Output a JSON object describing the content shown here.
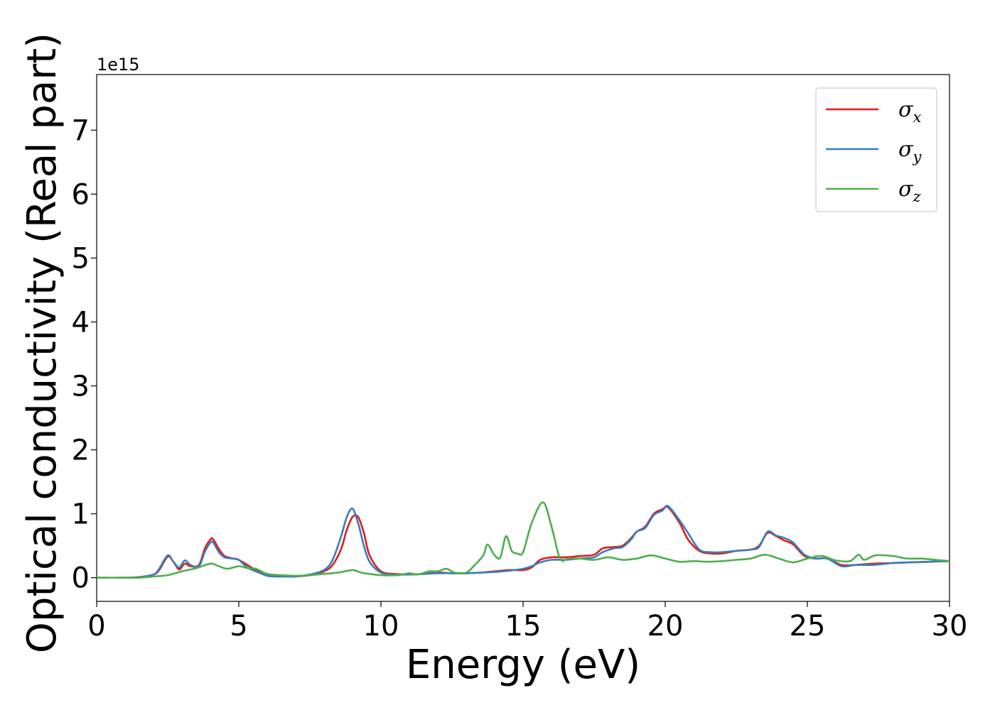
{
  "chart_data": {
    "type": "line",
    "title": "",
    "xlabel": "Energy (eV)",
    "ylabel": "Optical conductivity (Real part)",
    "y_offset_text": "1e15",
    "xlim": [
      0,
      30
    ],
    "ylim": [
      -0.37,
      7.87
    ],
    "xticks": [
      0,
      5,
      10,
      15,
      20,
      25,
      30
    ],
    "xtick_labels": [
      "0",
      "5",
      "10",
      "15",
      "20",
      "25",
      "30"
    ],
    "yticks": [
      0,
      1,
      2,
      3,
      4,
      5,
      6,
      7
    ],
    "ytick_labels": [
      "0",
      "1",
      "2",
      "3",
      "4",
      "5",
      "6",
      "7"
    ],
    "grid": false,
    "legend_position": "top-right",
    "series": [
      {
        "name": "σ",
        "subscript": "x",
        "color": "#e41a1c",
        "x": [
          0,
          1,
          1.5,
          2,
          2.2,
          2.5,
          2.7,
          2.9,
          3.1,
          3.3,
          3.6,
          3.8,
          4.0,
          4.1,
          4.3,
          4.5,
          4.8,
          5.0,
          5.3,
          5.6,
          6.0,
          6.3,
          6.6,
          7.0,
          7.5,
          8.0,
          8.3,
          8.6,
          8.8,
          9.0,
          9.2,
          9.4,
          9.6,
          10.0,
          10.5,
          11.0,
          11.5,
          12.0,
          12.5,
          13.0,
          13.5,
          14.0,
          14.5,
          15.0,
          15.3,
          15.6,
          16.0,
          16.5,
          17.0,
          17.5,
          17.8,
          18.2,
          18.5,
          18.8,
          19.0,
          19.3,
          19.6,
          19.9,
          20.1,
          20.5,
          20.8,
          21.2,
          21.6,
          22.0,
          22.5,
          23.0,
          23.3,
          23.6,
          23.9,
          24.2,
          24.5,
          24.9,
          25.3,
          25.7,
          26.2,
          26.7,
          27.3,
          28.0,
          28.6,
          29.3,
          30.0
        ],
        "y": [
          0,
          0,
          0.01,
          0.05,
          0.12,
          0.33,
          0.25,
          0.13,
          0.22,
          0.18,
          0.2,
          0.45,
          0.6,
          0.6,
          0.45,
          0.34,
          0.3,
          0.28,
          0.2,
          0.12,
          0.04,
          0.02,
          0.02,
          0.02,
          0.04,
          0.1,
          0.2,
          0.45,
          0.75,
          0.95,
          0.95,
          0.7,
          0.35,
          0.1,
          0.06,
          0.05,
          0.06,
          0.08,
          0.07,
          0.07,
          0.08,
          0.1,
          0.12,
          0.12,
          0.16,
          0.28,
          0.32,
          0.32,
          0.34,
          0.36,
          0.46,
          0.48,
          0.5,
          0.62,
          0.72,
          0.8,
          1.0,
          1.07,
          1.1,
          0.86,
          0.6,
          0.42,
          0.38,
          0.38,
          0.42,
          0.44,
          0.5,
          0.7,
          0.65,
          0.58,
          0.52,
          0.34,
          0.3,
          0.3,
          0.2,
          0.2,
          0.22,
          0.23,
          0.24,
          0.25,
          0.26
        ]
      },
      {
        "name": "σ",
        "subscript": "y",
        "color": "#377eb8",
        "x": [
          0,
          1,
          1.5,
          2,
          2.2,
          2.5,
          2.7,
          2.9,
          3.1,
          3.3,
          3.6,
          3.8,
          4.0,
          4.1,
          4.3,
          4.5,
          4.8,
          5.0,
          5.3,
          5.6,
          6.0,
          6.3,
          6.6,
          7.0,
          7.5,
          8.0,
          8.3,
          8.6,
          8.8,
          9.0,
          9.2,
          9.4,
          9.6,
          10.0,
          10.5,
          11.0,
          11.5,
          12.0,
          12.5,
          13.0,
          13.5,
          14.0,
          14.5,
          15.0,
          15.3,
          15.6,
          16.0,
          16.5,
          17.0,
          17.5,
          17.8,
          18.2,
          18.5,
          18.8,
          19.0,
          19.3,
          19.6,
          19.9,
          20.1,
          20.5,
          20.8,
          21.2,
          21.6,
          22.0,
          22.5,
          23.0,
          23.3,
          23.6,
          23.9,
          24.2,
          24.5,
          24.9,
          25.3,
          25.7,
          26.2,
          26.7,
          27.3,
          28.0,
          28.6,
          29.3,
          30.0
        ],
        "y": [
          0,
          0,
          0.01,
          0.05,
          0.14,
          0.35,
          0.25,
          0.16,
          0.27,
          0.2,
          0.18,
          0.4,
          0.55,
          0.55,
          0.4,
          0.32,
          0.3,
          0.28,
          0.16,
          0.1,
          0.03,
          0.02,
          0.02,
          0.02,
          0.05,
          0.12,
          0.28,
          0.65,
          0.95,
          1.08,
          0.85,
          0.5,
          0.25,
          0.08,
          0.05,
          0.05,
          0.06,
          0.07,
          0.07,
          0.07,
          0.08,
          0.09,
          0.11,
          0.14,
          0.18,
          0.24,
          0.28,
          0.28,
          0.3,
          0.32,
          0.4,
          0.46,
          0.48,
          0.6,
          0.72,
          0.78,
          0.98,
          1.05,
          1.12,
          0.9,
          0.7,
          0.44,
          0.4,
          0.4,
          0.42,
          0.44,
          0.48,
          0.72,
          0.66,
          0.62,
          0.55,
          0.36,
          0.3,
          0.3,
          0.18,
          0.2,
          0.2,
          0.23,
          0.24,
          0.25,
          0.26
        ]
      },
      {
        "name": "σ",
        "subscript": "z",
        "color": "#4daf4a",
        "x": [
          0,
          1,
          1.5,
          2,
          2.5,
          3.0,
          3.5,
          4.0,
          4.3,
          4.6,
          5.0,
          5.3,
          5.6,
          6.0,
          6.5,
          7.0,
          7.5,
          8.0,
          8.5,
          9.0,
          9.3,
          9.6,
          10.0,
          10.6,
          11.0,
          11.3,
          11.7,
          12.0,
          12.3,
          12.6,
          13.0,
          13.3,
          13.6,
          13.75,
          14.0,
          14.2,
          14.4,
          14.6,
          14.8,
          15.0,
          15.3,
          15.7,
          16.0,
          16.3,
          16.6,
          17.0,
          17.5,
          18.0,
          18.5,
          19.0,
          19.5,
          20.0,
          20.5,
          21.0,
          21.5,
          22.0,
          22.5,
          23.0,
          23.5,
          24.0,
          24.5,
          25.0,
          25.5,
          26.0,
          26.5,
          26.8,
          27.0,
          27.4,
          28.0,
          28.5,
          29.0,
          29.5,
          30.0
        ],
        "y": [
          0,
          0,
          0,
          0.02,
          0.04,
          0.1,
          0.15,
          0.22,
          0.18,
          0.14,
          0.18,
          0.15,
          0.14,
          0.06,
          0.04,
          0.03,
          0.04,
          0.06,
          0.08,
          0.12,
          0.08,
          0.06,
          0.04,
          0.04,
          0.07,
          0.05,
          0.1,
          0.1,
          0.14,
          0.08,
          0.08,
          0.2,
          0.35,
          0.52,
          0.35,
          0.32,
          0.65,
          0.42,
          0.38,
          0.4,
          0.85,
          1.18,
          0.8,
          0.3,
          0.3,
          0.3,
          0.28,
          0.32,
          0.28,
          0.3,
          0.35,
          0.3,
          0.25,
          0.26,
          0.25,
          0.26,
          0.28,
          0.3,
          0.36,
          0.3,
          0.24,
          0.3,
          0.34,
          0.27,
          0.26,
          0.36,
          0.28,
          0.35,
          0.34,
          0.3,
          0.3,
          0.28,
          0.26
        ]
      }
    ]
  }
}
